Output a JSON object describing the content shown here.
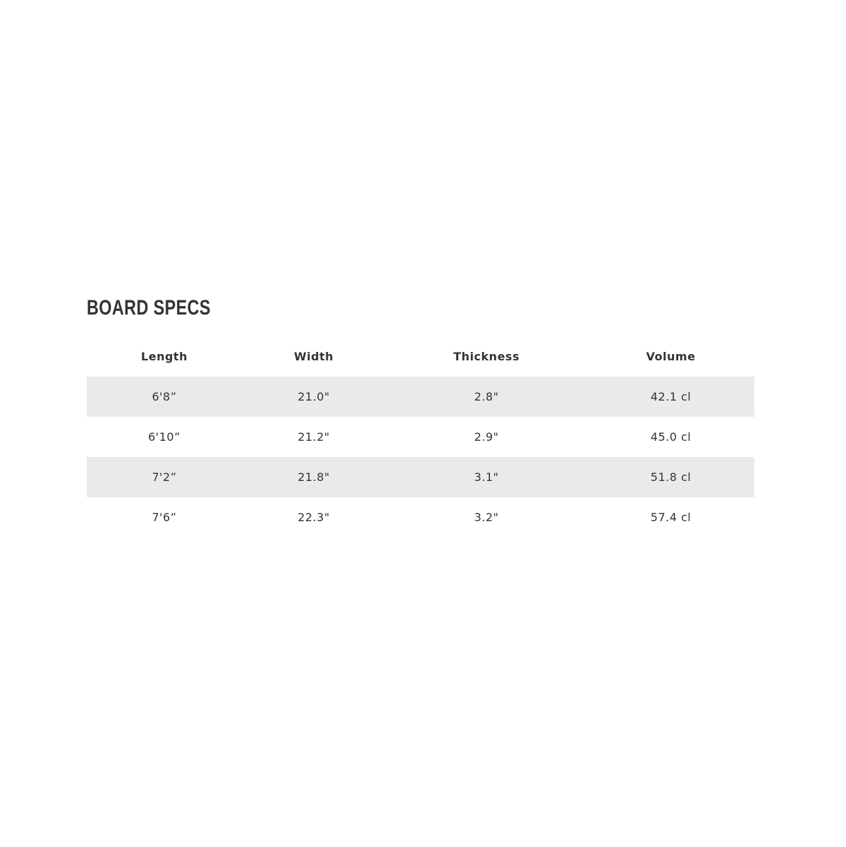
{
  "title": "BOARD SPECS",
  "columns": [
    "Length",
    "Width",
    "Thickness",
    "Volume"
  ],
  "rows": [
    [
      "6'8”",
      "21.0\"",
      "2.8\"",
      "42.1 cl"
    ],
    [
      "6'10”",
      "21.2\"",
      "2.9\"",
      "45.0 cl"
    ],
    [
      "7'2”",
      "21.8\"",
      "3.1\"",
      "51.8 cl"
    ],
    [
      "7'6”",
      "22.3\"",
      "3.2\"",
      "57.4 cl"
    ]
  ],
  "colors": {
    "stripe": "#e9eaec",
    "text": "#333333"
  }
}
